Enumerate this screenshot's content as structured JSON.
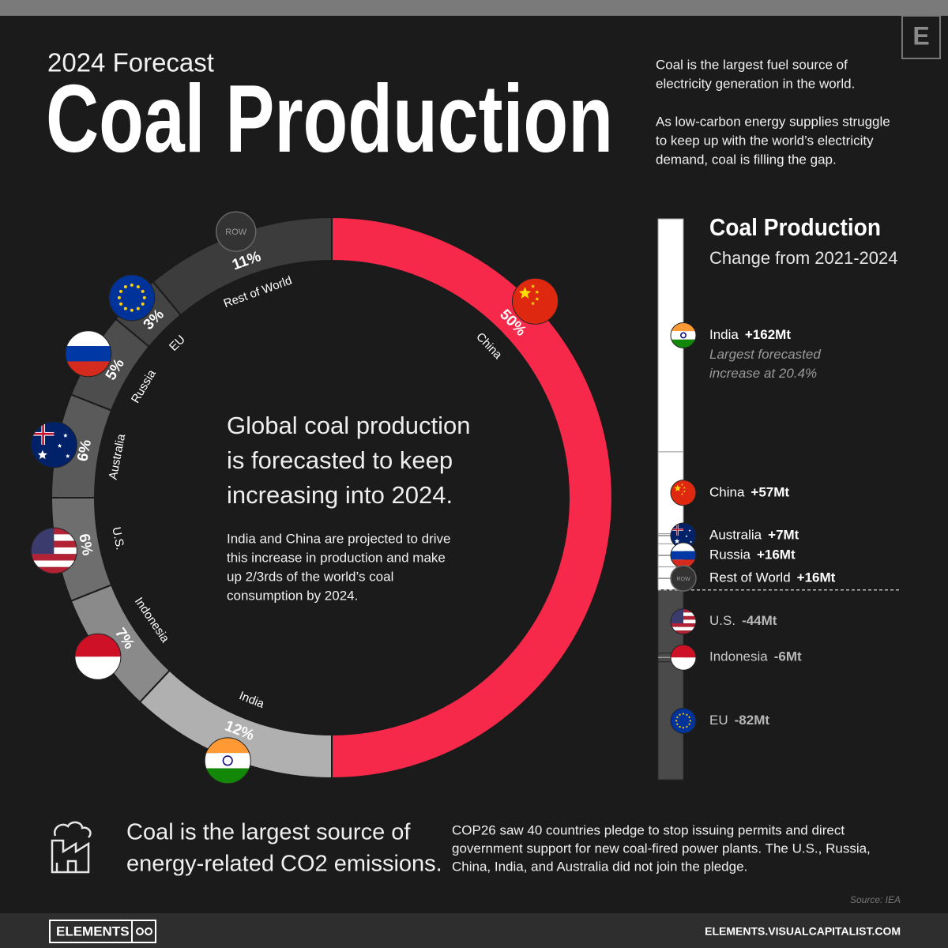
{
  "header": {
    "kicker": "2024 Forecast",
    "title": "Coal Production",
    "logo": "E"
  },
  "intro": [
    [
      "Coal is the largest fuel source of",
      "electricity generation in the world."
    ],
    [
      "As low-carbon energy supplies struggle",
      "to keep up with the world’s electricity",
      "demand, coal is filling the gap."
    ]
  ],
  "center": {
    "headline": [
      "Global coal production",
      "is forecasted to keep",
      "increasing into 2024."
    ],
    "body": [
      "India and China are projected to drive",
      "this increase in production and make",
      "up 2/3rds of the world’s coal",
      "consumption by 2024."
    ]
  },
  "footer_note": {
    "emphasis": [
      "Coal is the largest source of",
      "energy-related CO2 emissions."
    ],
    "body": [
      "COP26 saw 40 countries pledge to stop issuing permits and direct",
      "government support for new coal-fired power plants. The U.S., Russia,",
      "China, India, and Australia did not join the pledge."
    ],
    "source": "Source: IEA"
  },
  "footer": {
    "brand": "ELEMENTS",
    "url": "ELEMENTS.VISUALCAPITALIST.COM"
  },
  "chart_data": [
    {
      "type": "pie",
      "donut": true,
      "categories": [
        "China",
        "India",
        "Indonesia",
        "U.S.",
        "Australia",
        "Russia",
        "EU",
        "Rest of World"
      ],
      "values": [
        50,
        12,
        7,
        6,
        6,
        5,
        3,
        11
      ],
      "value_labels": [
        "50%",
        "12%",
        "7%",
        "6%",
        "6%",
        "5%",
        "3%",
        "11%"
      ],
      "colors": [
        "#f7294b",
        "#b0b0b0",
        "#8a8a8a",
        "#6e6e6e",
        "#5a5a5a",
        "#4d4d4d",
        "#444444",
        "#3c3c3c"
      ],
      "badge": "ROW"
    },
    {
      "type": "bar",
      "stacked": true,
      "title": "Coal Production",
      "subtitle": "Change from 2021-2024",
      "categories": [
        "India",
        "China",
        "Australia",
        "Russia",
        "Rest of World",
        "U.S.",
        "Indonesia",
        "EU"
      ],
      "values": [
        162,
        57,
        7,
        16,
        16,
        -44,
        -6,
        -82
      ],
      "value_labels": [
        "+162Mt",
        "+57Mt",
        "+7Mt",
        "+16Mt",
        "+16Mt",
        "-44Mt",
        "-6Mt",
        "-82Mt"
      ],
      "colors": {
        "positive": "#ffffff",
        "negative": "#4a4a4a"
      },
      "annotation": [
        "Largest forecasted",
        "increase at 20.4%"
      ],
      "badge": "ROW"
    }
  ]
}
